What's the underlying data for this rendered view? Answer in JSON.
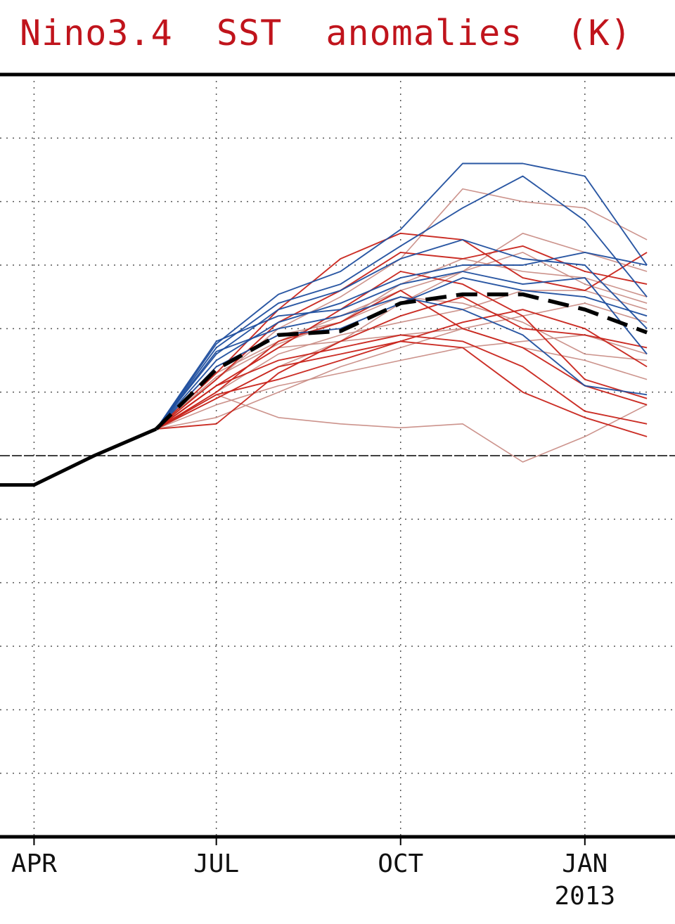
{
  "title": "Nino3.4  SST  anomalies  (K)",
  "chart_data": {
    "type": "line",
    "title": "Nino3.4  SST  anomalies  (K)",
    "x_axis": {
      "months": [
        "2012-03",
        "2012-04",
        "2012-05",
        "2012-06",
        "2012-07",
        "2012-08",
        "2012-09",
        "2012-10",
        "2012-11",
        "2012-12",
        "2013-01",
        "2013-02"
      ],
      "range": [
        "2012-03-15",
        "2013-02-15"
      ],
      "tick_labels": [
        {
          "month": "2012-04",
          "label": "APR"
        },
        {
          "month": "2012-07",
          "label": "JUL"
        },
        {
          "month": "2012-10",
          "label": "OCT"
        },
        {
          "month": "2013-01",
          "label": "JAN",
          "sublabel": "2013"
        }
      ]
    },
    "y_axis": {
      "range": [
        -3.0,
        3.0
      ],
      "zero_line": true,
      "grid_step": 0.5
    },
    "grid": true,
    "colors": {
      "title": "#c0141c",
      "observed": "#000000",
      "forecast_mean": "#000000",
      "member_blue": "#1f4e9e",
      "member_red": "#c8231a",
      "member_pink": "#c98d86"
    },
    "series": [
      {
        "role": "observed",
        "x": [
          "2012-03-15",
          "2012-04-01",
          "2012-05-01",
          "2012-06-01"
        ],
        "values": [
          -0.23,
          -0.23,
          -0.0,
          0.21
        ]
      },
      {
        "role": "forecast_mean",
        "x": [
          "2012-06-01",
          "2012-07-01",
          "2012-08-01",
          "2012-09-01",
          "2012-10-01",
          "2012-11-01",
          "2012-12-01",
          "2013-01-01",
          "2013-02-01"
        ],
        "values": [
          0.21,
          0.68,
          0.95,
          0.98,
          1.2,
          1.27,
          1.27,
          1.15,
          0.97
        ]
      },
      {
        "role": "member",
        "color": "member_blue",
        "x": [
          "2012-06-01",
          "2012-07-01",
          "2012-08-01",
          "2012-09-01",
          "2012-10-01",
          "2012-11-01",
          "2012-12-01",
          "2013-01-01",
          "2013-02-01"
        ],
        "values": [
          0.21,
          0.88,
          1.27,
          1.45,
          1.78,
          2.3,
          2.3,
          2.2,
          1.5
        ]
      },
      {
        "role": "member",
        "color": "member_blue",
        "x": [
          "2012-06-01",
          "2012-07-01",
          "2012-08-01",
          "2012-09-01",
          "2012-10-01",
          "2012-11-01",
          "2012-12-01",
          "2013-01-01",
          "2013-02-01"
        ],
        "values": [
          0.21,
          0.85,
          1.2,
          1.35,
          1.65,
          1.95,
          2.2,
          1.85,
          1.25
        ]
      },
      {
        "role": "member",
        "color": "member_blue",
        "x": [
          "2012-06-01",
          "2012-07-01",
          "2012-08-01",
          "2012-09-01",
          "2012-10-01",
          "2012-11-01",
          "2012-12-01",
          "2013-01-01",
          "2013-02-01"
        ],
        "values": [
          0.21,
          0.8,
          1.15,
          1.3,
          1.55,
          1.7,
          1.55,
          1.5,
          1.0
        ]
      },
      {
        "role": "member",
        "color": "member_blue",
        "x": [
          "2012-06-01",
          "2012-07-01",
          "2012-08-01",
          "2012-09-01",
          "2012-10-01",
          "2012-11-01",
          "2012-12-01",
          "2013-01-01",
          "2013-02-01"
        ],
        "values": [
          0.21,
          0.9,
          1.1,
          1.15,
          1.35,
          1.45,
          1.35,
          1.4,
          0.8
        ]
      },
      {
        "role": "member",
        "color": "member_blue",
        "x": [
          "2012-06-01",
          "2012-07-01",
          "2012-08-01",
          "2012-09-01",
          "2012-10-01",
          "2012-11-01",
          "2012-12-01",
          "2013-01-01",
          "2013-02-01"
        ],
        "values": [
          0.21,
          0.75,
          1.05,
          1.2,
          1.4,
          1.5,
          1.5,
          1.6,
          1.5
        ]
      },
      {
        "role": "member",
        "color": "member_blue",
        "x": [
          "2012-06-01",
          "2012-07-01",
          "2012-08-01",
          "2012-09-01",
          "2012-10-01",
          "2012-11-01",
          "2012-12-01",
          "2013-01-01",
          "2013-02-01"
        ],
        "values": [
          0.21,
          0.82,
          1.0,
          1.1,
          1.25,
          1.15,
          0.95,
          0.55,
          0.48
        ]
      },
      {
        "role": "member",
        "color": "member_blue",
        "x": [
          "2012-06-01",
          "2012-07-01",
          "2012-08-01",
          "2012-09-01",
          "2012-10-01",
          "2012-11-01",
          "2012-12-01",
          "2013-01-01",
          "2013-02-01"
        ],
        "values": [
          0.21,
          0.7,
          0.95,
          1.0,
          1.2,
          1.4,
          1.3,
          1.25,
          1.1
        ]
      },
      {
        "role": "member",
        "color": "member_red",
        "x": [
          "2012-06-01",
          "2012-07-01",
          "2012-08-01",
          "2012-09-01",
          "2012-10-01",
          "2012-11-01",
          "2012-12-01",
          "2013-01-01",
          "2013-02-01"
        ],
        "values": [
          0.21,
          0.65,
          1.15,
          1.55,
          1.75,
          1.7,
          1.4,
          1.3,
          1.6
        ]
      },
      {
        "role": "member",
        "color": "member_red",
        "x": [
          "2012-06-01",
          "2012-07-01",
          "2012-08-01",
          "2012-09-01",
          "2012-10-01",
          "2012-11-01",
          "2012-12-01",
          "2013-01-01",
          "2013-02-01"
        ],
        "values": [
          0.21,
          0.6,
          1.05,
          1.3,
          1.6,
          1.55,
          1.65,
          1.45,
          1.35
        ]
      },
      {
        "role": "member",
        "color": "member_red",
        "x": [
          "2012-06-01",
          "2012-07-01",
          "2012-08-01",
          "2012-09-01",
          "2012-10-01",
          "2012-11-01",
          "2012-12-01",
          "2013-01-01",
          "2013-02-01"
        ],
        "values": [
          0.21,
          0.5,
          0.9,
          1.05,
          1.3,
          1.0,
          0.85,
          0.55,
          0.4
        ]
      },
      {
        "role": "member",
        "color": "member_red",
        "x": [
          "2012-06-01",
          "2012-07-01",
          "2012-08-01",
          "2012-09-01",
          "2012-10-01",
          "2012-11-01",
          "2012-12-01",
          "2013-01-01",
          "2013-02-01"
        ],
        "values": [
          0.21,
          0.55,
          0.75,
          0.85,
          0.95,
          0.9,
          0.7,
          0.35,
          0.25
        ]
      },
      {
        "role": "member",
        "color": "member_red",
        "x": [
          "2012-06-01",
          "2012-07-01",
          "2012-08-01",
          "2012-09-01",
          "2012-10-01",
          "2012-11-01",
          "2012-12-01",
          "2013-01-01",
          "2013-02-01"
        ],
        "values": [
          0.21,
          0.45,
          0.7,
          0.8,
          0.9,
          0.85,
          0.5,
          0.3,
          0.15
        ]
      },
      {
        "role": "member",
        "color": "member_red",
        "x": [
          "2012-06-01",
          "2012-07-01",
          "2012-08-01",
          "2012-09-01",
          "2012-10-01",
          "2012-11-01",
          "2012-12-01",
          "2013-01-01",
          "2013-02-01"
        ],
        "values": [
          0.21,
          0.25,
          0.65,
          0.9,
          1.1,
          1.25,
          1.0,
          0.95,
          0.85
        ]
      },
      {
        "role": "member",
        "color": "member_red",
        "x": [
          "2012-06-01",
          "2012-07-01",
          "2012-08-01",
          "2012-09-01",
          "2012-10-01",
          "2012-11-01",
          "2012-12-01",
          "2013-01-01",
          "2013-02-01"
        ],
        "values": [
          0.21,
          0.55,
          0.85,
          1.15,
          1.45,
          1.35,
          1.1,
          0.6,
          0.45
        ]
      },
      {
        "role": "member",
        "color": "member_red",
        "x": [
          "2012-06-01",
          "2012-07-01",
          "2012-08-01",
          "2012-09-01",
          "2012-10-01",
          "2012-11-01",
          "2012-12-01",
          "2013-01-01",
          "2013-02-01"
        ],
        "values": [
          0.21,
          0.48,
          0.6,
          0.75,
          0.9,
          1.05,
          1.15,
          1.0,
          0.7
        ]
      },
      {
        "role": "member",
        "color": "member_pink",
        "x": [
          "2012-06-01",
          "2012-07-01",
          "2012-08-01",
          "2012-09-01",
          "2012-10-01",
          "2012-11-01",
          "2012-12-01",
          "2013-01-01",
          "2013-02-01"
        ],
        "values": [
          0.21,
          0.6,
          1.0,
          1.25,
          1.55,
          2.1,
          2.0,
          1.95,
          1.7
        ]
      },
      {
        "role": "member",
        "color": "member_pink",
        "x": [
          "2012-06-01",
          "2012-07-01",
          "2012-08-01",
          "2012-09-01",
          "2012-10-01",
          "2012-11-01",
          "2012-12-01",
          "2013-01-01",
          "2013-02-01"
        ],
        "values": [
          0.21,
          0.45,
          0.7,
          0.9,
          1.2,
          1.45,
          1.75,
          1.6,
          1.45
        ]
      },
      {
        "role": "member",
        "color": "member_pink",
        "x": [
          "2012-06-01",
          "2012-07-01",
          "2012-08-01",
          "2012-09-01",
          "2012-10-01",
          "2012-11-01",
          "2012-12-01",
          "2013-01-01",
          "2013-02-01"
        ],
        "values": [
          0.21,
          0.5,
          0.8,
          0.95,
          1.05,
          1.15,
          1.3,
          1.3,
          1.15
        ]
      },
      {
        "role": "member",
        "color": "member_pink",
        "x": [
          "2012-06-01",
          "2012-07-01",
          "2012-08-01",
          "2012-09-01",
          "2012-10-01",
          "2012-11-01",
          "2012-12-01",
          "2013-01-01",
          "2013-02-01"
        ],
        "values": [
          0.21,
          0.4,
          0.55,
          0.65,
          0.75,
          0.85,
          0.9,
          0.95,
          0.8
        ]
      },
      {
        "role": "member",
        "color": "member_pink",
        "x": [
          "2012-06-01",
          "2012-07-01",
          "2012-08-01",
          "2012-09-01",
          "2012-10-01",
          "2012-11-01",
          "2012-12-01",
          "2013-01-01",
          "2013-02-01"
        ],
        "values": [
          0.21,
          0.48,
          0.3,
          0.25,
          0.22,
          0.25,
          -0.05,
          0.15,
          0.4
        ]
      },
      {
        "role": "member",
        "color": "member_pink",
        "x": [
          "2012-06-01",
          "2012-07-01",
          "2012-08-01",
          "2012-09-01",
          "2012-10-01",
          "2012-11-01",
          "2012-12-01",
          "2013-01-01",
          "2013-02-01"
        ],
        "values": [
          0.21,
          0.55,
          0.85,
          0.9,
          0.95,
          1.0,
          0.85,
          0.75,
          0.6
        ]
      },
      {
        "role": "member",
        "color": "member_pink",
        "x": [
          "2012-06-01",
          "2012-07-01",
          "2012-08-01",
          "2012-09-01",
          "2012-10-01",
          "2012-11-01",
          "2012-12-01",
          "2013-01-01",
          "2013-02-01"
        ],
        "values": [
          0.21,
          0.65,
          0.9,
          1.1,
          1.3,
          1.45,
          1.6,
          1.35,
          1.2
        ]
      },
      {
        "role": "member",
        "color": "member_pink",
        "x": [
          "2012-06-01",
          "2012-07-01",
          "2012-08-01",
          "2012-09-01",
          "2012-10-01",
          "2012-11-01",
          "2012-12-01",
          "2013-01-01",
          "2013-02-01"
        ],
        "values": [
          0.21,
          0.7,
          0.95,
          1.05,
          1.25,
          1.2,
          1.05,
          0.8,
          0.75
        ]
      },
      {
        "role": "member",
        "color": "member_pink",
        "x": [
          "2012-06-01",
          "2012-07-01",
          "2012-08-01",
          "2012-09-01",
          "2012-10-01",
          "2012-11-01",
          "2012-12-01",
          "2013-01-01",
          "2013-02-01"
        ],
        "values": [
          0.21,
          0.3,
          0.5,
          0.7,
          0.85,
          1.0,
          1.1,
          1.2,
          1.05
        ]
      },
      {
        "role": "member",
        "color": "member_pink",
        "x": [
          "2012-06-01",
          "2012-07-01",
          "2012-08-01",
          "2012-09-01",
          "2012-10-01",
          "2012-11-01",
          "2012-12-01",
          "2013-01-01",
          "2013-02-01"
        ],
        "values": [
          0.21,
          0.62,
          0.88,
          1.05,
          1.35,
          1.55,
          1.45,
          1.4,
          1.25
        ]
      }
    ]
  }
}
